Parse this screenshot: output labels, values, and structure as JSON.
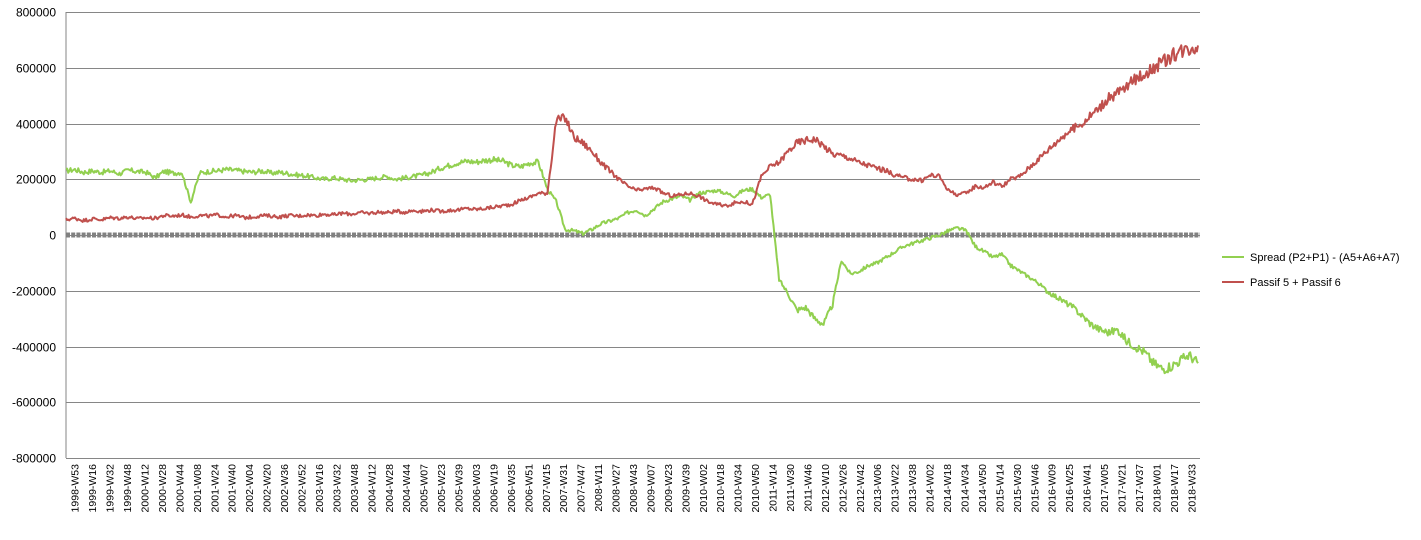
{
  "chart_data": {
    "type": "line",
    "title": "",
    "xlabel": "",
    "ylabel": "",
    "ylim": [
      -800000,
      800000
    ],
    "yticks": [
      800000,
      600000,
      400000,
      200000,
      0,
      -200000,
      -400000,
      -600000,
      -800000
    ],
    "grid": true,
    "legend_position": "right",
    "x_tick_labels": [
      "1998-W53",
      "1999-W16",
      "1999-W32",
      "1999-W48",
      "2000-W12",
      "2000-W28",
      "2000-W44",
      "2001-W08",
      "2001-W24",
      "2001-W40",
      "2002-W04",
      "2002-W20",
      "2002-W36",
      "2002-W52",
      "2003-W16",
      "2003-W32",
      "2003-W48",
      "2004-W12",
      "2004-W28",
      "2004-W44",
      "2005-W07",
      "2005-W23",
      "2005-W39",
      "2006-W03",
      "2006-W19",
      "2006-W35",
      "2006-W51",
      "2007-W15",
      "2007-W31",
      "2007-W47",
      "2008-W11",
      "2008-W27",
      "2008-W43",
      "2009-W07",
      "2009-W23",
      "2009-W39",
      "2010-W02",
      "2010-W18",
      "2010-W34",
      "2010-W50",
      "2011-W14",
      "2011-W30",
      "2011-W46",
      "2012-W10",
      "2012-W26",
      "2012-W42",
      "2013-W06",
      "2013-W22",
      "2013-W38",
      "2014-W02",
      "2014-W18",
      "2014-W34",
      "2014-W50",
      "2015-W14",
      "2015-W30",
      "2015-W46",
      "2016-W09",
      "2016-W25",
      "2016-W41",
      "2017-W05",
      "2017-W21",
      "2017-W37",
      "2018-W01",
      "2018-W17",
      "2018-W33"
    ],
    "series": [
      {
        "name": "Spread (P2+P1) - (A5+A6+A7)",
        "color": "#92D050",
        "values": [
          230000,
          235000,
          225000,
          230000,
          225000,
          230000,
          220000,
          232000,
          228000,
          225000,
          205000,
          228000,
          222000,
          225000,
          118000,
          222000,
          228000,
          230000,
          235000,
          232000,
          228000,
          225000,
          230000,
          222000,
          225000,
          220000,
          215000,
          212000,
          205000,
          200000,
          205000,
          200000,
          195000,
          198000,
          200000,
          205000,
          210000,
          200000,
          205000,
          210000,
          215000,
          225000,
          240000,
          250000,
          260000,
          265000,
          262000,
          268000,
          270000,
          265000,
          250000,
          245000,
          258000,
          262000,
          165000,
          120000,
          20000,
          15000,
          5000,
          20000,
          40000,
          50000,
          60000,
          80000,
          90000,
          70000,
          95000,
          120000,
          130000,
          140000,
          125000,
          150000,
          155000,
          160000,
          150000,
          140000,
          160000,
          165000,
          135000,
          145000,
          -160000,
          -210000,
          -270000,
          -260000,
          -300000,
          -320000,
          -250000,
          -90000,
          -140000,
          -130000,
          -110000,
          -100000,
          -80000,
          -60000,
          -40000,
          -30000,
          -20000,
          -10000,
          0,
          15000,
          25000,
          15000,
          -40000,
          -60000,
          -80000,
          -70000,
          -110000,
          -130000,
          -150000,
          -170000,
          -200000,
          -220000,
          -240000,
          -260000,
          -290000,
          -320000,
          -340000,
          -350000,
          -340000,
          -380000,
          -400000,
          -420000,
          -460000,
          -480000,
          -470000,
          -450000,
          -430000,
          -460000
        ]
      },
      {
        "name": "Passif 5 + Passif 6",
        "color": "#C0504D",
        "values": [
          55000,
          60000,
          52000,
          58000,
          55000,
          62000,
          60000,
          65000,
          58000,
          62000,
          60000,
          70000,
          68000,
          72000,
          65000,
          70000,
          68000,
          72000,
          65000,
          70000,
          62000,
          65000,
          70000,
          68000,
          65000,
          70000,
          68000,
          72000,
          70000,
          75000,
          72000,
          78000,
          75000,
          80000,
          78000,
          82000,
          80000,
          85000,
          82000,
          88000,
          85000,
          90000,
          85000,
          88000,
          90000,
          95000,
          92000,
          95000,
          100000,
          105000,
          110000,
          125000,
          135000,
          150000,
          150000,
          410000,
          420000,
          350000,
          330000,
          300000,
          260000,
          230000,
          200000,
          175000,
          160000,
          165000,
          170000,
          150000,
          140000,
          145000,
          150000,
          140000,
          120000,
          110000,
          105000,
          115000,
          120000,
          110000,
          210000,
          245000,
          260000,
          300000,
          330000,
          340000,
          345000,
          320000,
          290000,
          285000,
          275000,
          260000,
          250000,
          240000,
          230000,
          215000,
          205000,
          200000,
          195000,
          215000,
          210000,
          160000,
          145000,
          150000,
          175000,
          170000,
          190000,
          175000,
          200000,
          210000,
          240000,
          270000,
          300000,
          330000,
          360000,
          380000,
          400000,
          430000,
          460000,
          490000,
          510000,
          530000,
          560000,
          580000,
          600000,
          620000,
          640000,
          660000,
          670000,
          680000
        ]
      }
    ]
  }
}
